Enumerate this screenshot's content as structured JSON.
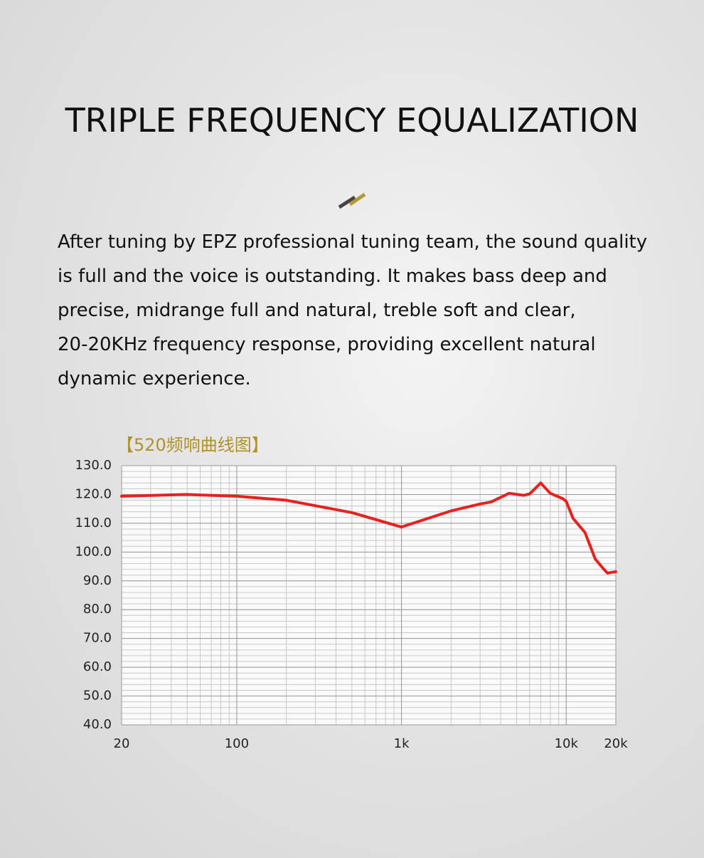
{
  "heading": "TRIPLE FREQUENCY EQUALIZATION",
  "paragraph": [
    "After tuning by EPZ professional tuning team, the sound quality",
    "is full and the voice is outstanding. It makes bass deep and",
    "precise, midrange full and natural, treble soft and clear,",
    "20-20KHz frequency response, providing excellent natural",
    "dynamic experience."
  ],
  "chart_data": {
    "type": "line",
    "title": "【520频响曲线图】",
    "x": [
      20,
      50,
      100,
      200,
      500,
      1000,
      2000,
      3000,
      3500,
      4500,
      5500,
      6000,
      7000,
      8000,
      9500,
      10000,
      11000,
      13000,
      15000,
      17000,
      17800,
      20000
    ],
    "series": [
      {
        "color": "#e8201e",
        "values": [
          119.4,
          120,
          119.4,
          118,
          113.7,
          108.7,
          114.3,
          116.7,
          117.4,
          120.4,
          119.7,
          120.2,
          124,
          120.4,
          118.6,
          117.6,
          111.7,
          106.8,
          97.6,
          93.9,
          92.7,
          93.2
        ]
      }
    ],
    "xlim": [
      20,
      20000
    ],
    "xscale": "log",
    "xticks": [
      20,
      100,
      {
        "value": 1000,
        "label": "1k"
      },
      {
        "value": 10000,
        "label": "10k"
      },
      {
        "value": 20000,
        "label": "20k"
      }
    ],
    "ylim": [
      40,
      130
    ],
    "yticks": [
      {
        "value": 130,
        "label": "130.0"
      },
      {
        "value": 120,
        "label": "120.0"
      },
      {
        "value": 110,
        "label": "110.0"
      },
      {
        "value": 100,
        "label": "100.0"
      },
      {
        "value": 90,
        "label": "90.0"
      },
      {
        "value": 80,
        "label": "80.0"
      },
      {
        "value": 70,
        "label": "70.0"
      },
      {
        "value": 60,
        "label": "60.0"
      },
      {
        "value": 50,
        "label": "50.0"
      },
      {
        "value": 40,
        "label": "40.0"
      }
    ],
    "grid": true
  }
}
